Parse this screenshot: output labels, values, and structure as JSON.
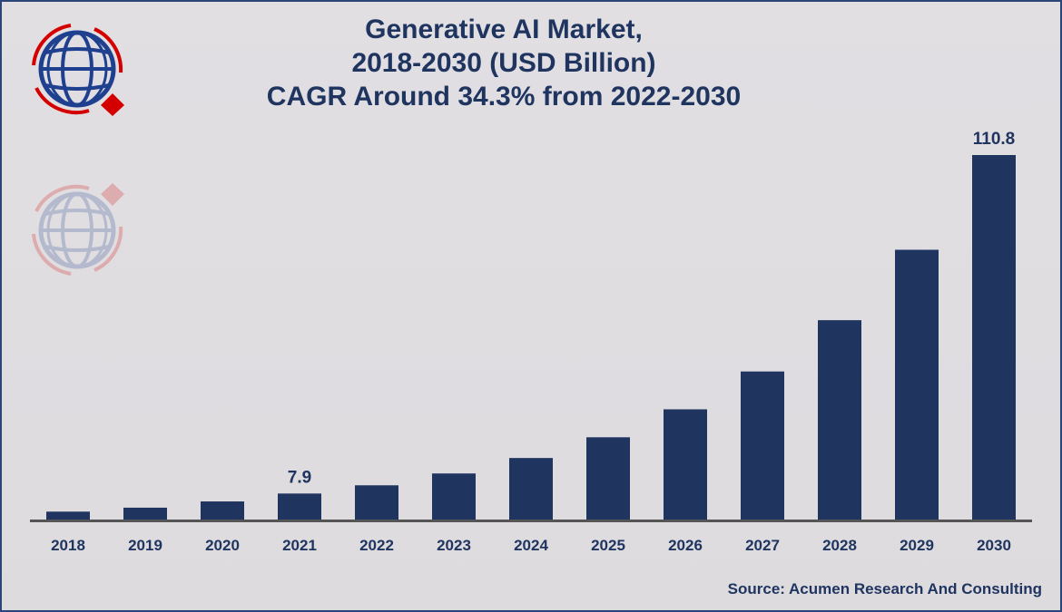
{
  "chart_data": {
    "type": "bar",
    "title_lines": [
      "Generative AI Market,",
      "2018-2030 (USD Billion)",
      "CAGR Around 34.3% from 2022-2030"
    ],
    "categories": [
      "2018",
      "2019",
      "2020",
      "2021",
      "2022",
      "2023",
      "2024",
      "2025",
      "2026",
      "2027",
      "2028",
      "2029",
      "2030"
    ],
    "values": [
      2.4,
      3.6,
      5.5,
      7.9,
      10.4,
      14.0,
      18.7,
      25.0,
      33.5,
      45.0,
      60.6,
      82.0,
      110.8
    ],
    "data_labels": {
      "2021": "7.9",
      "2030": "110.8"
    },
    "xlabel": "",
    "ylabel": "",
    "ylim": [
      0,
      110.8
    ],
    "grid": false,
    "bar_color": "#1f3560",
    "axis_color": "#555555"
  },
  "source": "Source: Acumen Research And Consulting",
  "logo": {
    "name": "globe-logo",
    "colors": {
      "globe": "#1f3f8f",
      "arrows": "#d40000"
    }
  }
}
